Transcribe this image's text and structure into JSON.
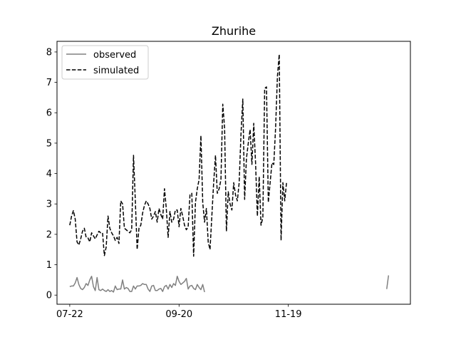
{
  "chart_data": {
    "type": "line",
    "title": "Zhurihe",
    "xlabel": "",
    "ylabel": "",
    "x_axis": {
      "kind": "date (MM-DD)",
      "range": [
        "07-15",
        "01-25"
      ],
      "ticks": [
        {
          "date": "07-22",
          "label": "07-22"
        },
        {
          "date": "09-20",
          "label": "09-20"
        },
        {
          "date": "11-19",
          "label": "11-19"
        }
      ]
    },
    "ylim": [
      -0.3,
      8.35
    ],
    "yticks": [
      0,
      1,
      2,
      3,
      4,
      5,
      6,
      7,
      8
    ],
    "grid": false,
    "legend": {
      "position": "top-left",
      "entries": [
        "observed",
        "simulated"
      ]
    },
    "series": [
      {
        "name": "observed",
        "color": "#808080",
        "style": "solid",
        "segments": [
          {
            "start": "07-22",
            "step_days": 1,
            "values": [
              0.28,
              0.3,
              0.3,
              0.4,
              0.58,
              0.35,
              0.22,
              0.18,
              0.25,
              0.38,
              0.32,
              0.5,
              0.62,
              0.28,
              0.15,
              0.58,
              0.18,
              0.15,
              0.2,
              0.15,
              0.12,
              0.18,
              0.12,
              0.15,
              0.1,
              0.3,
              0.18,
              0.2,
              0.2,
              0.5,
              0.2,
              0.25,
              0.22,
              0.12,
              0.12,
              0.3,
              0.2,
              0.3,
              0.3,
              0.32,
              0.38,
              0.35,
              0.35,
              0.2,
              0.12,
              0.3,
              0.32,
              0.15,
              0.15,
              0.2,
              0.22,
              0.12,
              0.28,
              0.32,
              0.2,
              0.35,
              0.25,
              0.38,
              0.32,
              0.62,
              0.45,
              0.35,
              0.4,
              0.45,
              0.55,
              0.2,
              0.3,
              0.32,
              0.22,
              0.18,
              0.35,
              0.25,
              0.18,
              0.35,
              0.1
            ]
          },
          {
            "start": "01-12",
            "step_days": 1,
            "values": [
              0.2,
              0.65
            ]
          }
        ]
      },
      {
        "name": "simulated",
        "color": "#000000",
        "style": "dashed",
        "segments": [
          {
            "start": "07-22",
            "step_days": 1,
            "values": [
              2.3,
              2.6,
              2.78,
              2.5,
              1.75,
              1.65,
              1.85,
              2.1,
              2.2,
              1.9,
              1.88,
              1.75,
              2.05,
              1.95,
              1.85,
              1.98,
              2.1,
              2.05,
              2.05,
              1.3,
              1.58,
              2.6,
              2.2,
              2.05,
              1.95,
              1.8,
              1.9,
              1.7,
              3.1,
              3.0,
              2.2,
              2.15,
              2.1,
              2.05,
              2.15,
              4.6,
              3.1,
              1.5,
              2.2,
              2.3,
              2.7,
              2.95,
              3.1,
              3.0,
              2.85,
              2.5,
              2.6,
              2.75,
              2.4,
              2.85,
              2.65,
              2.5,
              3.5,
              2.85,
              1.9,
              2.75,
              2.4,
              2.5,
              2.8,
              2.8,
              2.25,
              2.85,
              2.6,
              2.3,
              2.15,
              2.25,
              3.3,
              3.35,
              1.28,
              3.05,
              3.5,
              3.8,
              5.25,
              3.05,
              2.4,
              2.85,
              1.75,
              1.5,
              2.6,
              3.7,
              4.6,
              3.35,
              3.5,
              3.8,
              6.28,
              5.5,
              2.1,
              3.4,
              3.0,
              2.8,
              3.7,
              3.3,
              3.1,
              3.7,
              5.3,
              6.45,
              3.15,
              4.5,
              5.0,
              5.45,
              4.3,
              5.65,
              4.35,
              2.6,
              3.9,
              2.3,
              2.55,
              6.8,
              6.85,
              3.05,
              3.7,
              4.35,
              4.3,
              5.5,
              7.2,
              7.92,
              1.8,
              3.7,
              3.1,
              3.7
            ]
          }
        ]
      }
    ]
  }
}
